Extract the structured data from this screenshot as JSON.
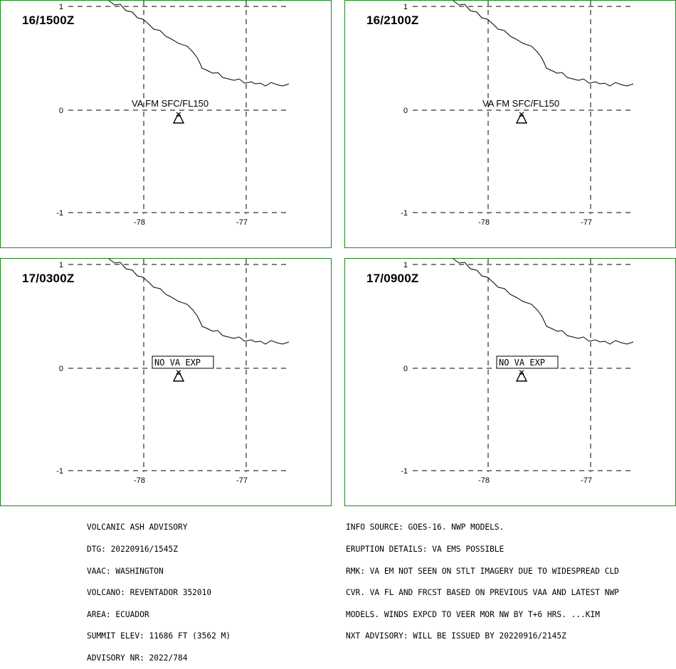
{
  "panels": [
    {
      "valid_time": "16/1500Z",
      "label": "VA FM SFC/FL150",
      "label_boxed": false,
      "has_ash": true
    },
    {
      "valid_time": "16/2100Z",
      "label": "VA FM SFC/FL150",
      "label_boxed": false,
      "has_ash": true
    },
    {
      "valid_time": "17/0300Z",
      "label": "NO VA EXP",
      "label_boxed": true,
      "has_ash": false
    },
    {
      "valid_time": "17/0900Z",
      "label": "NO VA EXP",
      "label_boxed": true,
      "has_ash": false
    }
  ],
  "axes": {
    "lat_labels": [
      "1",
      "0",
      "-1"
    ],
    "lon_labels": [
      "-78",
      "-77"
    ]
  },
  "colors": {
    "panel_border": "#1a8a1a",
    "lines": "#000000",
    "background": "#ffffff"
  },
  "icons": [
    "volcano-icon",
    "ash-cloud-polygon"
  ],
  "advisory_left": [
    "VOLCANIC ASH ADVISORY",
    "DTG: 20220916/1545Z",
    "VAAC: WASHINGTON",
    "VOLCANO: REVENTADOR 352010",
    "AREA: ECUADOR",
    "SUMMIT ELEV: 11686 FT (3562 M)",
    "ADVISORY NR: 2022/784"
  ],
  "advisory_right": [
    "INFO SOURCE: GOES-16. NWP MODELS.",
    "ERUPTION DETAILS: VA EMS POSSIBLE",
    "RMK: VA EM NOT SEEN ON STLT IMAGERY DUE TO WIDESPREAD CLD",
    "CVR. VA FL AND FRCST BASED ON PREVIOUS VAA AND LATEST NWP",
    "MODELS. WINDS EXPCD TO VEER MOR NW BY T+6 HRS. ...KIM",
    "NXT ADVISORY: WILL BE ISSUED BY 20220916/2145Z"
  ]
}
